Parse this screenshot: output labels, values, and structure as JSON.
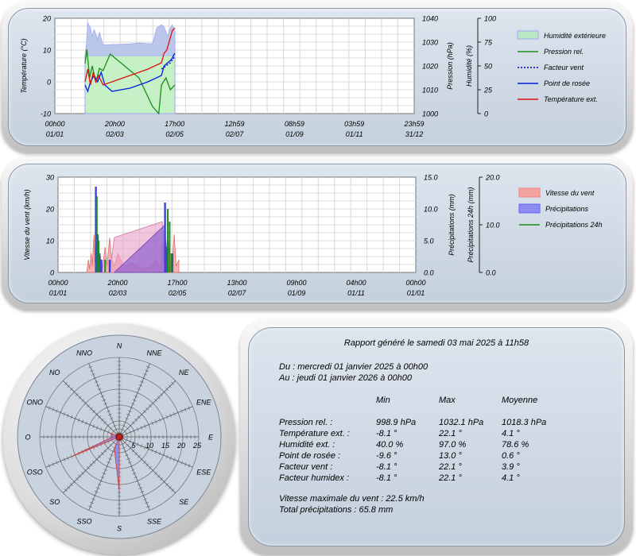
{
  "chart_data": [
    {
      "type": "line",
      "x": [
        "00h00 01/01",
        "20h00 02/03",
        "17h00 02/05",
        "12h59 02/07",
        "08h59 01/09",
        "03h59 01/11",
        "23h59 31/12"
      ],
      "ylabel_left": "Température (°C)",
      "ylabel_right1": "Pression (hPa)",
      "ylabel_right2": "Humidité (%)",
      "ylim_left": [
        -10,
        20
      ],
      "ylim_right1": [
        1000,
        1040
      ],
      "ylim_right2": [
        0,
        100
      ],
      "ticks_left": [
        "20",
        "10",
        "0",
        "-10"
      ],
      "ticks_right1": [
        "1040",
        "1030",
        "1020",
        "1010",
        "1000"
      ],
      "ticks_right2": [
        "100",
        "75",
        "50",
        "25",
        "0"
      ],
      "legend_position": "right",
      "series": [
        {
          "name": "Humidité extérieure",
          "color": "#9fa6ee",
          "fill": "#b7e8b7",
          "kind": "area",
          "points": [
            [
              0.0,
              62
            ],
            [
              0.015,
              72
            ],
            [
              0.03,
              95
            ],
            [
              0.06,
              90
            ],
            [
              0.08,
              80
            ],
            [
              0.1,
              88
            ],
            [
              0.14,
              78
            ],
            [
              0.16,
              85
            ],
            [
              0.2,
              72
            ],
            [
              0.5,
              73
            ],
            [
              0.6,
              74
            ],
            [
              0.75,
              73
            ],
            [
              0.8,
              90
            ],
            [
              0.85,
              93
            ],
            [
              0.88,
              91
            ],
            [
              0.92,
              80
            ],
            [
              0.94,
              88
            ],
            [
              0.97,
              93
            ],
            [
              1.0,
              87
            ]
          ]
        },
        {
          "name": "Pression rel.",
          "color": "#1a8c1a",
          "kind": "line",
          "points": [
            [
              0.0,
              1021
            ],
            [
              0.02,
              1027
            ],
            [
              0.05,
              1015
            ],
            [
              0.08,
              1020
            ],
            [
              0.12,
              1013
            ],
            [
              0.16,
              1019
            ],
            [
              0.2,
              1018
            ],
            [
              0.28,
              1025
            ],
            [
              0.6,
              1015
            ],
            [
              0.75,
              1003
            ],
            [
              0.82,
              1000
            ],
            [
              0.85,
              1012
            ],
            [
              0.9,
              1015
            ],
            [
              0.95,
              1010
            ],
            [
              1.0,
              1012
            ]
          ]
        },
        {
          "name": "Facteur vent",
          "color": "#0000cc",
          "kind": "dotted",
          "points": [
            [
              0.85,
              4
            ],
            [
              0.9,
              5
            ],
            [
              0.95,
              6
            ],
            [
              1.0,
              8
            ]
          ]
        },
        {
          "name": "Point de rosée",
          "color": "#0020dd",
          "kind": "line",
          "points": [
            [
              0.0,
              -1
            ],
            [
              0.03,
              -3
            ],
            [
              0.06,
              0
            ],
            [
              0.1,
              2
            ],
            [
              0.14,
              0
            ],
            [
              0.18,
              3
            ],
            [
              0.22,
              -1
            ],
            [
              0.3,
              -3
            ],
            [
              0.5,
              -2
            ],
            [
              0.7,
              0
            ],
            [
              0.85,
              2
            ],
            [
              0.88,
              5
            ],
            [
              0.92,
              6
            ],
            [
              0.96,
              7
            ],
            [
              1.0,
              9
            ]
          ]
        },
        {
          "name": "Température ext.",
          "color": "#e01010",
          "kind": "line",
          "points": [
            [
              0.0,
              0
            ],
            [
              0.03,
              4
            ],
            [
              0.06,
              -1
            ],
            [
              0.09,
              3
            ],
            [
              0.12,
              0
            ],
            [
              0.15,
              2
            ],
            [
              0.2,
              -1
            ],
            [
              0.3,
              0
            ],
            [
              0.5,
              2
            ],
            [
              0.7,
              4
            ],
            [
              0.85,
              6
            ],
            [
              0.88,
              9
            ],
            [
              0.91,
              10
            ],
            [
              0.94,
              13
            ],
            [
              0.97,
              16
            ],
            [
              1.0,
              17
            ]
          ]
        }
      ]
    },
    {
      "type": "area",
      "x": [
        "00h00 01/01",
        "20h00 02/03",
        "17h00 02/05",
        "13h00 02/07",
        "09h00 01/09",
        "04h00 01/11",
        "00h00 01/01"
      ],
      "ylabel_left": "Vitesse du vent (km/h)",
      "ylabel_right1": "Précipitations (mm)",
      "ylabel_right2": "Précipitations 24h (mm)",
      "ylim_left": [
        0,
        30
      ],
      "ylim_right1": [
        0,
        15
      ],
      "ylim_right2": [
        0,
        20
      ],
      "ticks_left": [
        "30",
        "20",
        "10",
        "0"
      ],
      "ticks_right1": [
        "15.0",
        "10.0",
        "5.0",
        "0.0"
      ],
      "ticks_right2": [
        "20.0",
        "10.0",
        "0.0"
      ],
      "legend_position": "right",
      "series": [
        {
          "name": "Vitesse du vent",
          "color": "#f08080",
          "fill": "#f4a3a3"
        },
        {
          "name": "Précipitations",
          "color": "#6060ff",
          "fill": "#8b8bf0"
        },
        {
          "name": "Précipitations 24h",
          "color": "#1a8c1a"
        }
      ]
    },
    {
      "type": "radar",
      "directions": [
        "N",
        "NNE",
        "NE",
        "ENE",
        "E",
        "ESE",
        "SE",
        "SSE",
        "S",
        "SSO",
        "SO",
        "OSO",
        "O",
        "ONO",
        "NO",
        "NNO"
      ],
      "rings": [
        "5",
        "10",
        "15",
        "20",
        "25"
      ],
      "max": 25,
      "values": [
        0,
        0,
        0,
        0,
        0,
        0,
        0,
        0,
        17,
        4,
        0,
        16,
        2,
        3,
        0,
        0
      ],
      "fill": "#7b7be8",
      "outline": "#d04040"
    }
  ],
  "report": {
    "title": "Rapport généré le samedi 03 mai 2025 à 11h58",
    "from": "Du : mercredi 01 janvier 2025 à 00h00",
    "to": "Au : jeudi 01 janvier 2026 à 00h00",
    "headers": [
      "Min",
      "Max",
      "Moyenne"
    ],
    "rows": [
      {
        "label": "Pression rel. :",
        "min": "998.9 hPa",
        "max": "1032.1 hPa",
        "avg": "1018.3 hPa"
      },
      {
        "label": "Température ext. :",
        "min": "-8.1 °",
        "max": "22.1 °",
        "avg": "4.1 °"
      },
      {
        "label": "Humidité ext. :",
        "min": "40.0 %",
        "max": "97.0 %",
        "avg": "78.6 %"
      },
      {
        "label": "Point de rosée :",
        "min": "-9.6 °",
        "max": "13.0 °",
        "avg": "0.6 °"
      },
      {
        "label": "Facteur vent :",
        "min": "-8.1 °",
        "max": "22.1 °",
        "avg": "3.9 °"
      },
      {
        "label": "Facteur humidex :",
        "min": "-8.1 °",
        "max": "22.1 °",
        "avg": "4.1 °"
      }
    ],
    "wind_max": "Vitesse maximale du vent : 22.5 km/h",
    "total_rain": "Total précipitations : 65.8 mm"
  }
}
